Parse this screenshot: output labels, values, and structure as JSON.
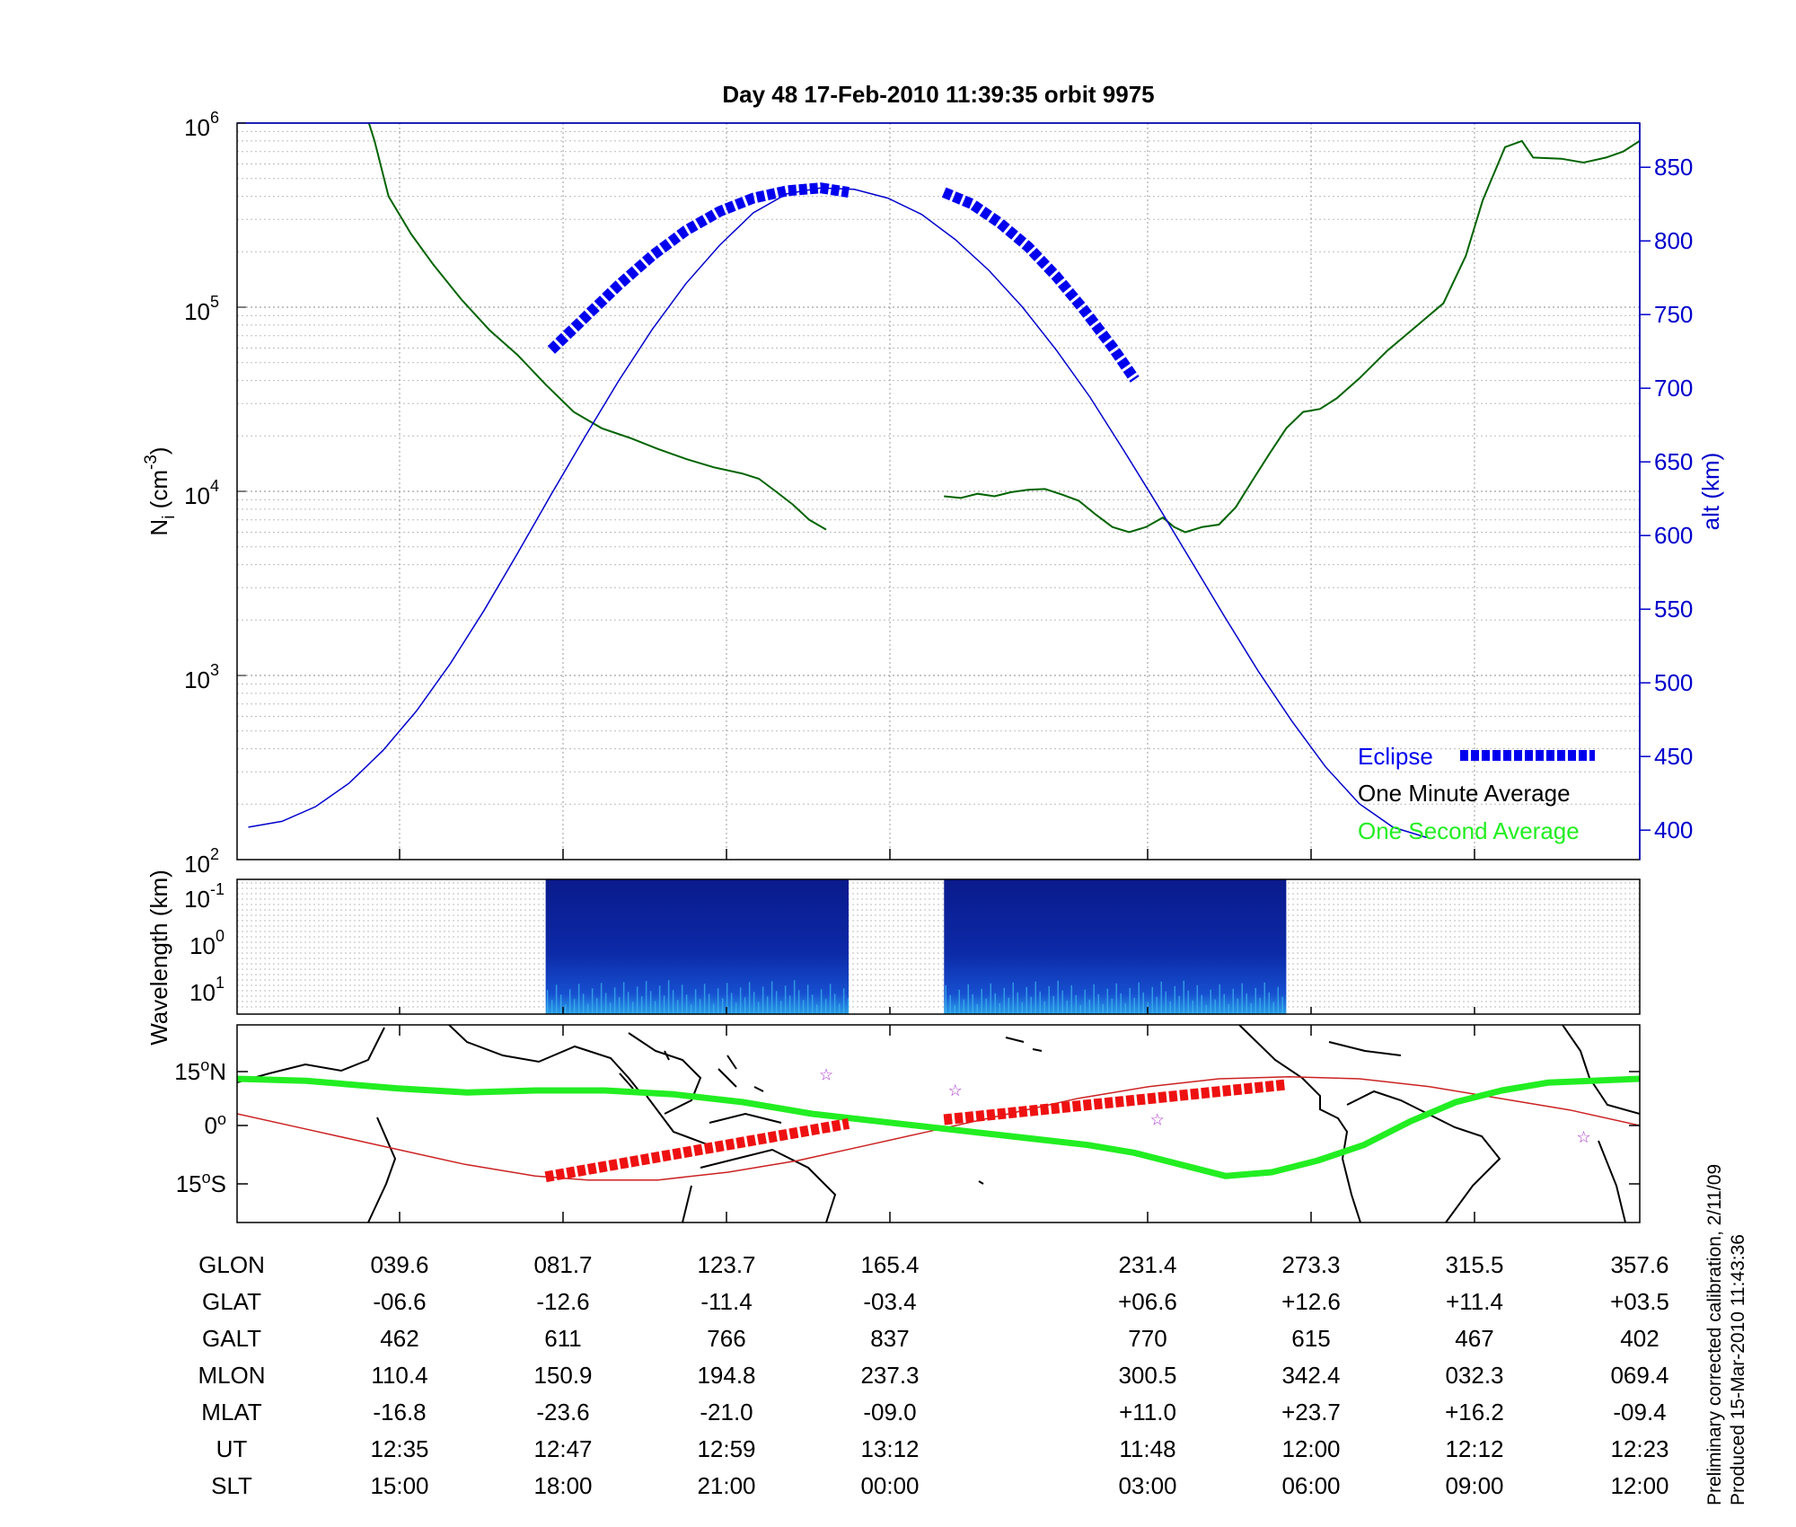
{
  "title": "Day 48  17-Feb-2010 11:39:35   orbit 9975",
  "side_note": [
    "Preliminary corrected calibration, 2/11/09",
    "Produced 15-Mar-2010 11:43:36"
  ],
  "colors": {
    "alt": "#0000cc",
    "eclipse": "#0000ee",
    "density": "#006400",
    "green": "#22ee22",
    "red_track": "#cc2222",
    "red_eclipse": "#ee1111",
    "star": "#aa33cc"
  },
  "chart_data": [
    {
      "type": "line",
      "panel": "density",
      "ylabel": "N_i (cm^-3)",
      "ylabel_main": "N",
      "ylabel_sub": "i",
      "ylabel_unit": " (cm",
      "ylabel_unit_sup": "-3",
      "ylabel_close": ")",
      "y_scale": "log",
      "ylim": [
        100,
        1000000
      ],
      "y_ticks": [
        {
          "base": "10",
          "exp": "2"
        },
        {
          "base": "10",
          "exp": "3"
        },
        {
          "base": "10",
          "exp": "4"
        },
        {
          "base": "10",
          "exp": "5"
        },
        {
          "base": "10",
          "exp": "6"
        }
      ],
      "y2label": "alt (km)",
      "y2lim": [
        380,
        880
      ],
      "y2_ticks": [
        "400",
        "450",
        "500",
        "550",
        "600",
        "650",
        "700",
        "750",
        "800",
        "850"
      ],
      "grid": true,
      "legend_position": "bottom-right",
      "legend": [
        {
          "label": "Eclipse",
          "color": "#0000ee"
        },
        {
          "label": "One Minute Average",
          "color": "#000000"
        },
        {
          "label": "One Second Average",
          "color": "#22ee22"
        }
      ],
      "x_ticks_ut": [
        "12:35",
        "12:47",
        "12:59",
        "13:12",
        "11:48",
        "12:00",
        "12:12",
        "12:23"
      ],
      "series": [
        {
          "name": "One Minute Average",
          "y_axis": "log",
          "segments": [
            [
              [
                12.35,
                1000000
              ],
              [
                12.45,
                800000
              ],
              [
                12.7,
                400000
              ],
              [
                13.1,
                250000
              ],
              [
                13.5,
                170000
              ],
              [
                14.0,
                110000
              ],
              [
                14.5,
                75000
              ],
              [
                15.0,
                55000
              ],
              [
                15.5,
                38000
              ],
              [
                16.0,
                27000
              ],
              [
                16.5,
                22000
              ],
              [
                17.0,
                19500
              ],
              [
                17.5,
                17000
              ],
              [
                18.0,
                15000
              ],
              [
                18.5,
                13500
              ],
              [
                19.0,
                12500
              ],
              [
                19.3,
                11700
              ],
              [
                19.6,
                10000
              ],
              [
                19.9,
                8500
              ],
              [
                20.2,
                7000
              ],
              [
                20.5,
                6200
              ]
            ],
            [
              [
                22.6,
                9400
              ],
              [
                22.9,
                9200
              ],
              [
                23.2,
                9700
              ],
              [
                23.5,
                9400
              ],
              [
                23.8,
                9900
              ],
              [
                24.1,
                10200
              ],
              [
                24.4,
                10300
              ],
              [
                24.7,
                9600
              ],
              [
                25.0,
                8900
              ],
              [
                25.3,
                7500
              ],
              [
                25.6,
                6400
              ],
              [
                25.9,
                6000
              ],
              [
                26.2,
                6400
              ],
              [
                26.5,
                7200
              ],
              [
                26.7,
                6400
              ],
              [
                26.9,
                6000
              ],
              [
                27.2,
                6400
              ],
              [
                27.5,
                6600
              ],
              [
                27.8,
                8200
              ],
              [
                28.1,
                11500
              ],
              [
                28.4,
                16000
              ],
              [
                28.7,
                22000
              ],
              [
                29.0,
                27000
              ],
              [
                29.3,
                28000
              ],
              [
                29.6,
                32000
              ],
              [
                30.0,
                41000
              ],
              [
                30.5,
                58000
              ],
              [
                31.0,
                78000
              ],
              [
                31.5,
                105000
              ],
              [
                31.9,
                190000
              ],
              [
                32.2,
                380000
              ],
              [
                32.6,
                740000
              ],
              [
                32.9,
                800000
              ],
              [
                33.1,
                650000
              ],
              [
                33.6,
                640000
              ],
              [
                34.0,
                610000
              ],
              [
                34.4,
                650000
              ],
              [
                34.7,
                700000
              ],
              [
                35.0,
                800000
              ]
            ]
          ]
        },
        {
          "name": "alt (km)",
          "y_axis": "alt",
          "segments": [
            [
              [
                10.2,
                402
              ],
              [
                10.8,
                406
              ],
              [
                11.4,
                416
              ],
              [
                12.0,
                432
              ],
              [
                12.6,
                454
              ],
              [
                13.2,
                481
              ],
              [
                13.8,
                513
              ],
              [
                14.4,
                549
              ],
              [
                15.0,
                588
              ],
              [
                15.6,
                628
              ],
              [
                16.2,
                667
              ],
              [
                16.8,
                705
              ],
              [
                17.4,
                740
              ],
              [
                18.0,
                771
              ],
              [
                18.6,
                797
              ],
              [
                19.2,
                819
              ],
              [
                19.8,
                832
              ],
              [
                20.4,
                836
              ],
              [
                21.0,
                835
              ],
              [
                21.6,
                829
              ],
              [
                22.2,
                818
              ],
              [
                22.8,
                801
              ],
              [
                23.4,
                780
              ],
              [
                24.0,
                755
              ],
              [
                24.6,
                726
              ],
              [
                25.2,
                694
              ],
              [
                25.8,
                658
              ],
              [
                26.4,
                621
              ],
              [
                27.0,
                583
              ],
              [
                27.6,
                545
              ],
              [
                28.2,
                508
              ],
              [
                28.8,
                474
              ],
              [
                29.4,
                443
              ],
              [
                30.0,
                418
              ],
              [
                30.6,
                402
              ],
              [
                31.2,
                395
              ]
            ]
          ]
        },
        {
          "name": "Eclipse",
          "y_axis": "alt",
          "segments": [
            [
              [
                15.6,
                726
              ],
              [
                16.2,
                748
              ],
              [
                16.8,
                770
              ],
              [
                17.4,
                790
              ],
              [
                18.0,
                807
              ],
              [
                18.6,
                820
              ],
              [
                19.2,
                829
              ],
              [
                19.8,
                834
              ],
              [
                20.4,
                836
              ],
              [
                20.9,
                833
              ]
            ],
            [
              [
                22.6,
                833
              ],
              [
                23.1,
                825
              ],
              [
                23.6,
                812
              ],
              [
                24.1,
                796
              ],
              [
                24.6,
                776
              ],
              [
                25.1,
                753
              ],
              [
                25.6,
                728
              ],
              [
                26.0,
                706
              ]
            ]
          ]
        }
      ]
    },
    {
      "type": "heatmap",
      "panel": "spectrogram",
      "ylabel": "Wavelength (km)",
      "y_ticks": [
        {
          "base": "10",
          "exp": "-1"
        },
        {
          "base": "10",
          "exp": "0"
        },
        {
          "base": "10",
          "exp": "1"
        }
      ],
      "blocks": [
        [
          15.5,
          20.9
        ],
        [
          22.6,
          28.7
        ]
      ]
    },
    {
      "type": "map",
      "panel": "ground_track",
      "y_ticks": [
        {
          "value": "15",
          "hemi": "N"
        },
        {
          "value": "0",
          "hemi": ""
        },
        {
          "value": "15",
          "hemi": "S"
        }
      ],
      "green_line": [
        [
          -1,
          12
        ],
        [
          2,
          11.5
        ],
        [
          6,
          9.5
        ],
        [
          9,
          8.5
        ],
        [
          12,
          9
        ],
        [
          15,
          9
        ],
        [
          18,
          8
        ],
        [
          21,
          6
        ],
        [
          24,
          3
        ],
        [
          27,
          1
        ],
        [
          30,
          -1
        ],
        [
          33,
          -3
        ],
        [
          36,
          -5
        ],
        [
          38,
          -7
        ],
        [
          40,
          -10
        ],
        [
          42,
          -13
        ],
        [
          44,
          -12
        ],
        [
          46,
          -9
        ],
        [
          48,
          -5
        ],
        [
          50,
          1
        ],
        [
          52,
          6
        ],
        [
          54,
          9
        ],
        [
          56,
          11
        ],
        [
          60,
          12
        ]
      ],
      "red_track": [
        [
          -1,
          3
        ],
        [
          3,
          -1
        ],
        [
          8,
          -6
        ],
        [
          12,
          -10
        ],
        [
          16,
          -13
        ],
        [
          19,
          -14
        ],
        [
          23,
          -14
        ],
        [
          27,
          -12
        ],
        [
          31,
          -9
        ],
        [
          35,
          -5
        ],
        [
          39,
          -1
        ],
        [
          43,
          3
        ],
        [
          47,
          7
        ],
        [
          51,
          10
        ],
        [
          55,
          12
        ],
        [
          59,
          12.5
        ],
        [
          63,
          12
        ],
        [
          67,
          10
        ],
        [
          71,
          7
        ],
        [
          75,
          4
        ],
        [
          79,
          0
        ]
      ],
      "red_eclipse": [
        [
          15.5,
          -13.2
        ],
        [
          20.9,
          0.5
        ],
        [
          22.6,
          1.5
        ],
        [
          28.7,
          10.5
        ]
      ],
      "stars": [
        [
          [
            20.5,
            13
          ]
        ],
        [
          [
            22.8,
            9
          ]
        ],
        [
          [
            26.4,
            1.5
          ]
        ],
        [
          [
            34,
            -3
          ]
        ]
      ]
    }
  ],
  "table": {
    "row_labels": [
      "GLON",
      "GLAT",
      "GALT",
      "MLON",
      "MLAT",
      "UT",
      "SLT"
    ],
    "columns": [
      [
        "039.6",
        "-06.6",
        "462",
        "110.4",
        "-16.8",
        "12:35",
        "15:00"
      ],
      [
        "081.7",
        "-12.6",
        "611",
        "150.9",
        "-23.6",
        "12:47",
        "18:00"
      ],
      [
        "123.7",
        "-11.4",
        "766",
        "194.8",
        "-21.0",
        "12:59",
        "21:00"
      ],
      [
        "165.4",
        "-03.4",
        "837",
        "237.3",
        "-09.0",
        "13:12",
        "00:00"
      ],
      [
        "231.4",
        "+06.6",
        "770",
        "300.5",
        "+11.0",
        "11:48",
        "03:00"
      ],
      [
        "273.3",
        "+12.6",
        "615",
        "342.4",
        "+23.7",
        "12:00",
        "06:00"
      ],
      [
        "315.5",
        "+11.4",
        "467",
        "032.3",
        "+16.2",
        "12:12",
        "09:00"
      ],
      [
        "357.6",
        "+03.5",
        "402",
        "069.4",
        "-09.4",
        "12:23",
        "12:00"
      ]
    ]
  }
}
